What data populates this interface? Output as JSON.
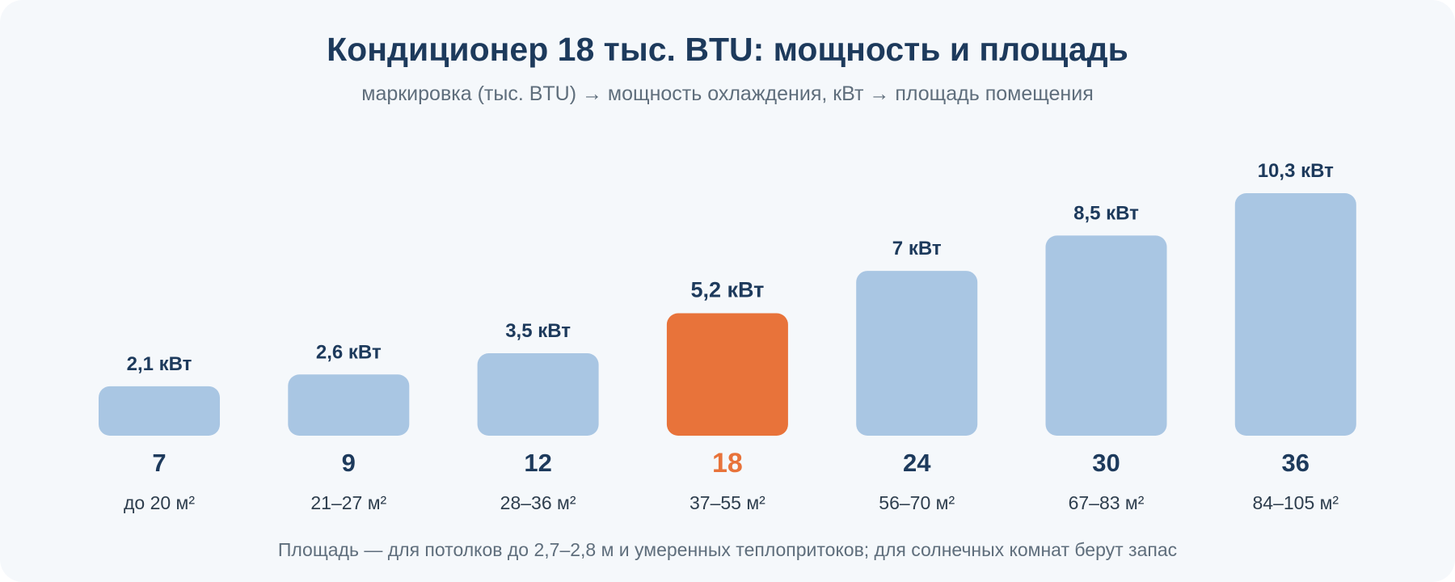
{
  "chart_data": {
    "type": "bar",
    "title": "Кондиционер 18 тыс. BTU: мощность и площадь",
    "subtitle": "маркировка (тыс. BTU) → мощность охлаждения, кВт → площадь помещения",
    "categories": [
      "7",
      "9",
      "12",
      "18",
      "24",
      "30",
      "36"
    ],
    "values": [
      2.1,
      2.6,
      3.5,
      5.2,
      7,
      8.5,
      10.3
    ],
    "value_labels": [
      "2,1 кВт",
      "2,6 кВт",
      "3,5 кВт",
      "5,2 кВт",
      "7 кВт",
      "8,5 кВт",
      "10,3 кВт"
    ],
    "areas": [
      "до 20 м²",
      "21–27 м²",
      "28–36 м²",
      "37–55 м²",
      "56–70 м²",
      "67–83 м²",
      "84–105 м²"
    ],
    "highlight_category": "18",
    "unit": "кВт",
    "ylim": [
      0,
      10.3
    ],
    "grid": false,
    "legend": "none",
    "colors": {
      "bar": "#a9c6e3",
      "highlight": "#e8733a",
      "text": "#1d3a5c",
      "muted": "#5f6e7c",
      "background": "#f5f8fb"
    },
    "footnote": "Площадь — для потолков до 2,7–2,8 м и умеренных теплопритоков; для солнечных комнат берут запас"
  }
}
